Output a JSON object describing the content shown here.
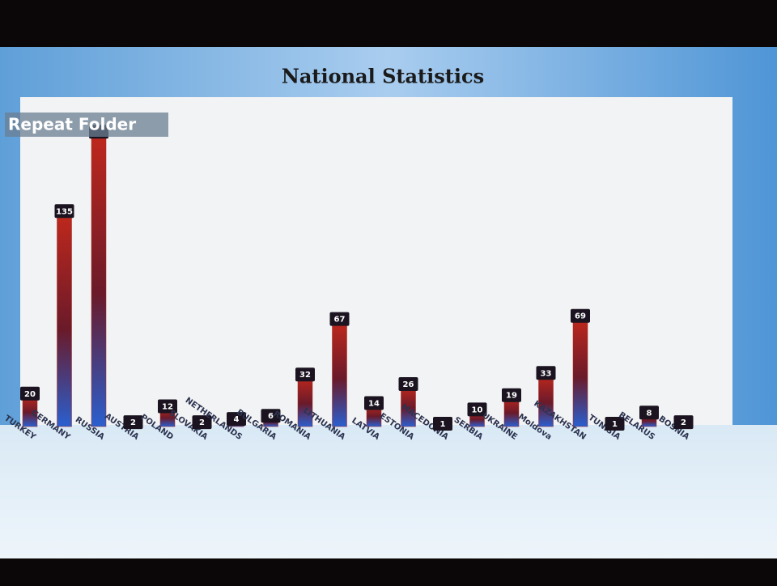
{
  "overlay_label": "Repeat Folder",
  "chart_data": {
    "type": "bar",
    "title": "National Statistics",
    "categories": [
      "TURKEY",
      "GERMANY",
      "RUSSIA",
      "AUSTRIA",
      "POLAND",
      "SLOVAKIA",
      "NETHERLANDS",
      "BULGARIA",
      "ROMANIA",
      "LITHUANIA",
      "LATVIA",
      "ESTONIA",
      "MACEDONIA",
      "SERBIA",
      "UKRAINE",
      "Moldova",
      "KAZAKHSTAN",
      "TUNISIA",
      "BELARUS",
      "BOSNIA"
    ],
    "values": [
      20,
      135,
      185,
      2,
      12,
      2,
      4,
      6,
      32,
      67,
      14,
      26,
      1,
      10,
      19,
      33,
      69,
      1,
      8,
      2
    ],
    "value_labels": [
      "20",
      "135",
      null,
      "2",
      "12",
      "2",
      "4",
      "6",
      "32",
      "67",
      "14",
      "26",
      "1",
      "10",
      "19",
      "33",
      "69",
      "1",
      "8",
      "2"
    ],
    "color": "#a8261e",
    "ylim": [
      0,
      205
    ]
  }
}
